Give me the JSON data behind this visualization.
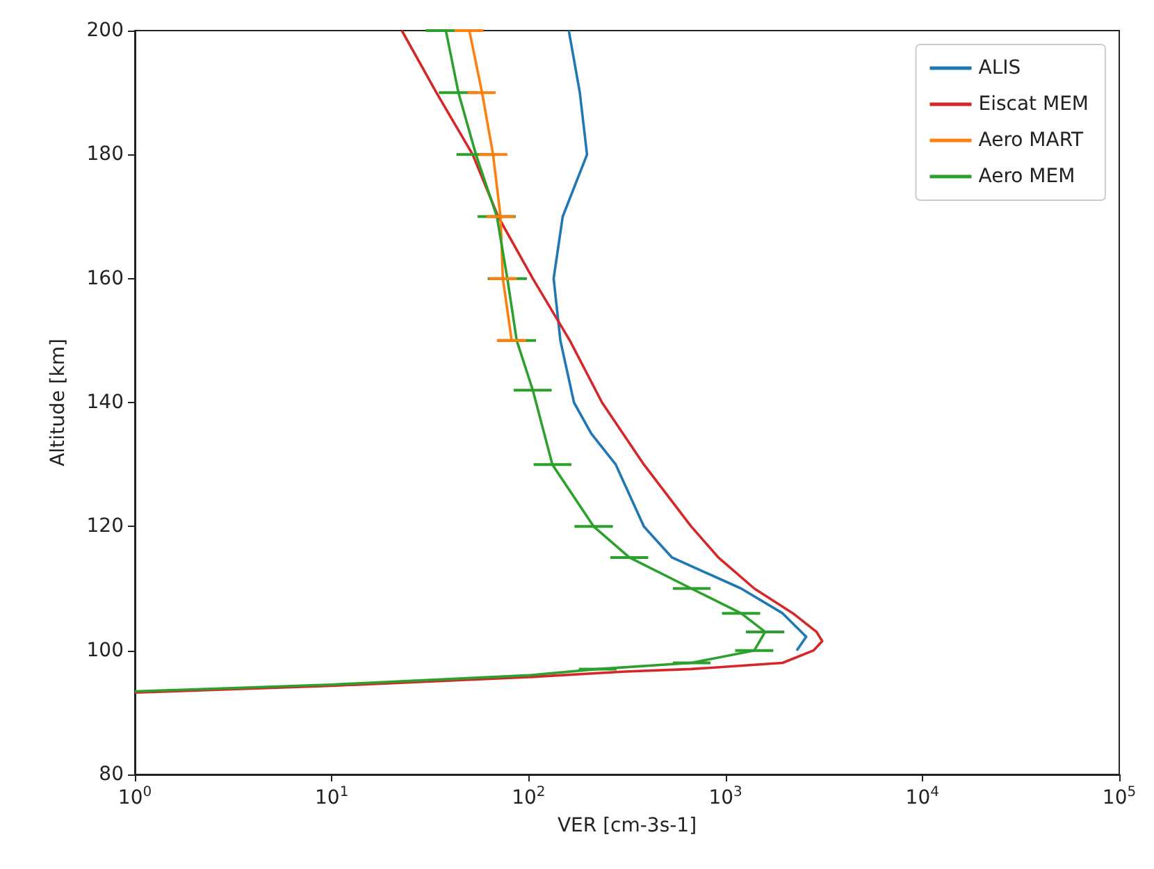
{
  "chart_data": {
    "type": "line",
    "xlabel": "VER [cm-3s-1]",
    "ylabel": "Altitude [km]",
    "log": "x",
    "xlim": [
      1,
      100000
    ],
    "xticks": [
      {
        "value": 1,
        "label": "10$^{0}$"
      },
      {
        "value": 10,
        "label": "10$^{1}$"
      },
      {
        "value": 100,
        "label": "10$^{2}$"
      },
      {
        "value": 1000,
        "label": "10$^{3}$"
      },
      {
        "value": 10000,
        "label": "10$^{4}$"
      },
      {
        "value": 100000,
        "label": "10$^{5}$"
      }
    ],
    "ylim": [
      80,
      200
    ],
    "yticks": [
      80,
      100,
      120,
      140,
      160,
      180,
      200
    ],
    "grid": false,
    "legend": "top right",
    "series": [
      {
        "name": "ALIS",
        "color": "#1f77b4",
        "x": [
          2300,
          2570,
          1950,
          1200,
          535,
          385,
          277,
          208,
          170,
          145,
          134,
          149,
          198,
          182,
          160
        ],
        "values": [
          100,
          102.2,
          106,
          110,
          115,
          120,
          130,
          135,
          140,
          150,
          160,
          170,
          180,
          190,
          200
        ]
      },
      {
        "name": "Eiscat MEM",
        "color": "#d62728",
        "x": [
          1,
          10,
          100,
          310,
          670,
          1950,
          2800,
          3100,
          2900,
          2200,
          1400,
          920,
          670,
          385,
          236,
          162,
          105,
          70,
          52,
          34,
          22.7
        ],
        "values": [
          93.2,
          94.3,
          95.7,
          96.6,
          97,
          98,
          100,
          101.5,
          103,
          106,
          110,
          115,
          120,
          130,
          140,
          150,
          160,
          170,
          180,
          190,
          200
        ]
      },
      {
        "name": "Aero MART",
        "color": "#ff7f0e",
        "x": [
          82,
          74,
          72,
          66,
          58,
          50
        ],
        "values": [
          150,
          160,
          170,
          180,
          190,
          200
        ],
        "xerrors": [
          [
            69,
            97
          ],
          [
            63,
            87
          ],
          [
            61,
            85
          ],
          [
            56,
            78
          ],
          [
            49,
            68
          ],
          [
            42,
            59
          ]
        ]
      },
      {
        "name": "Aero MEM",
        "color": "#2ca02c",
        "x": [
          1,
          10,
          100,
          225,
          670,
          1400,
          1590,
          1200,
          670,
          325,
          214,
          132,
          105,
          87,
          78,
          69,
          54,
          44,
          38
        ],
        "values": [
          93.4,
          94.5,
          96,
          97,
          98,
          100,
          103,
          106,
          110,
          115,
          120,
          130,
          142,
          150,
          160,
          170,
          180,
          190,
          200
        ],
        "xerrors": [
          null,
          null,
          null,
          [
            180,
            280
          ],
          [
            540,
            840
          ],
          [
            1120,
            1750
          ],
          [
            1270,
            1990
          ],
          [
            960,
            1500
          ],
          [
            540,
            840
          ],
          [
            260,
            405
          ],
          [
            171,
            268
          ],
          [
            106,
            165
          ],
          [
            84,
            131
          ],
          [
            70,
            109
          ],
          [
            62,
            98
          ],
          [
            55,
            86
          ],
          [
            43,
            68
          ],
          [
            35,
            55
          ],
          [
            30,
            48
          ]
        ]
      }
    ]
  }
}
